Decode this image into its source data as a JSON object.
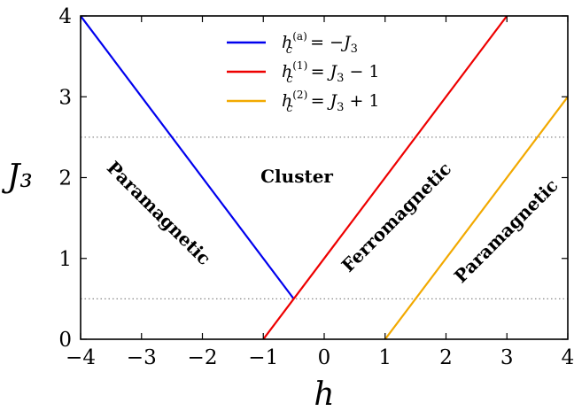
{
  "chart_data": {
    "type": "line",
    "title": "",
    "xlabel": "h",
    "ylabel": "J₃",
    "xlim": [
      -4,
      4
    ],
    "ylim": [
      0,
      4
    ],
    "x_ticks": [
      -4,
      -3,
      -2,
      -1,
      0,
      1,
      2,
      3,
      4
    ],
    "y_ticks": [
      0,
      1,
      2,
      3,
      4
    ],
    "x_tick_labels": [
      "−4",
      "−3",
      "−2",
      "−1",
      "0",
      "1",
      "2",
      "3",
      "4"
    ],
    "y_tick_labels": [
      "0",
      "1",
      "2",
      "3",
      "4"
    ],
    "grid": false,
    "legend_position": "top-center",
    "series": [
      {
        "name": "h_c^(a) = −J₃",
        "color": "#0000ee",
        "points": [
          [
            -4,
            4
          ],
          [
            -0.5,
            0.5
          ]
        ]
      },
      {
        "name": "h_c^(1) = J₃ − 1",
        "color": "#ee0000",
        "points": [
          [
            -1,
            0
          ],
          [
            3,
            4
          ]
        ]
      },
      {
        "name": "h_c^(2) = J₃ + 1",
        "color": "#f2a900",
        "points": [
          [
            1,
            0
          ],
          [
            4,
            3
          ]
        ]
      }
    ],
    "reference_lines": [
      {
        "orientation": "horizontal",
        "y": 2.5,
        "style": "dotted",
        "color": "#888888"
      },
      {
        "orientation": "horizontal",
        "y": 0.5,
        "style": "dotted",
        "color": "#888888"
      }
    ],
    "legend_entries": [
      {
        "base": "h",
        "sub": "c",
        "sup": "(a)",
        "rhs": " = −J",
        "rhs_sub": "3",
        "rhs_tail": "",
        "color": "#0000ee"
      },
      {
        "base": "h",
        "sub": "c",
        "sup": "(1)",
        "rhs": " = J",
        "rhs_sub": "3",
        "rhs_tail": " − 1",
        "color": "#ee0000"
      },
      {
        "base": "h",
        "sub": "c",
        "sup": "(2)",
        "rhs": " = J",
        "rhs_sub": "3",
        "rhs_tail": " + 1",
        "color": "#f2a900"
      }
    ],
    "annotations": [
      {
        "text": "Paramagnetic",
        "x": -2.73,
        "y": 1.55,
        "rotation_deg": 45
      },
      {
        "text": "Cluster",
        "x": -0.45,
        "y": 2.0,
        "rotation_deg": 0
      },
      {
        "text": "Ferromagnetic",
        "x": 1.2,
        "y": 1.5,
        "rotation_deg": -45
      },
      {
        "text": "Paramagnetic",
        "x": 3.0,
        "y": 1.33,
        "rotation_deg": -45
      }
    ]
  }
}
